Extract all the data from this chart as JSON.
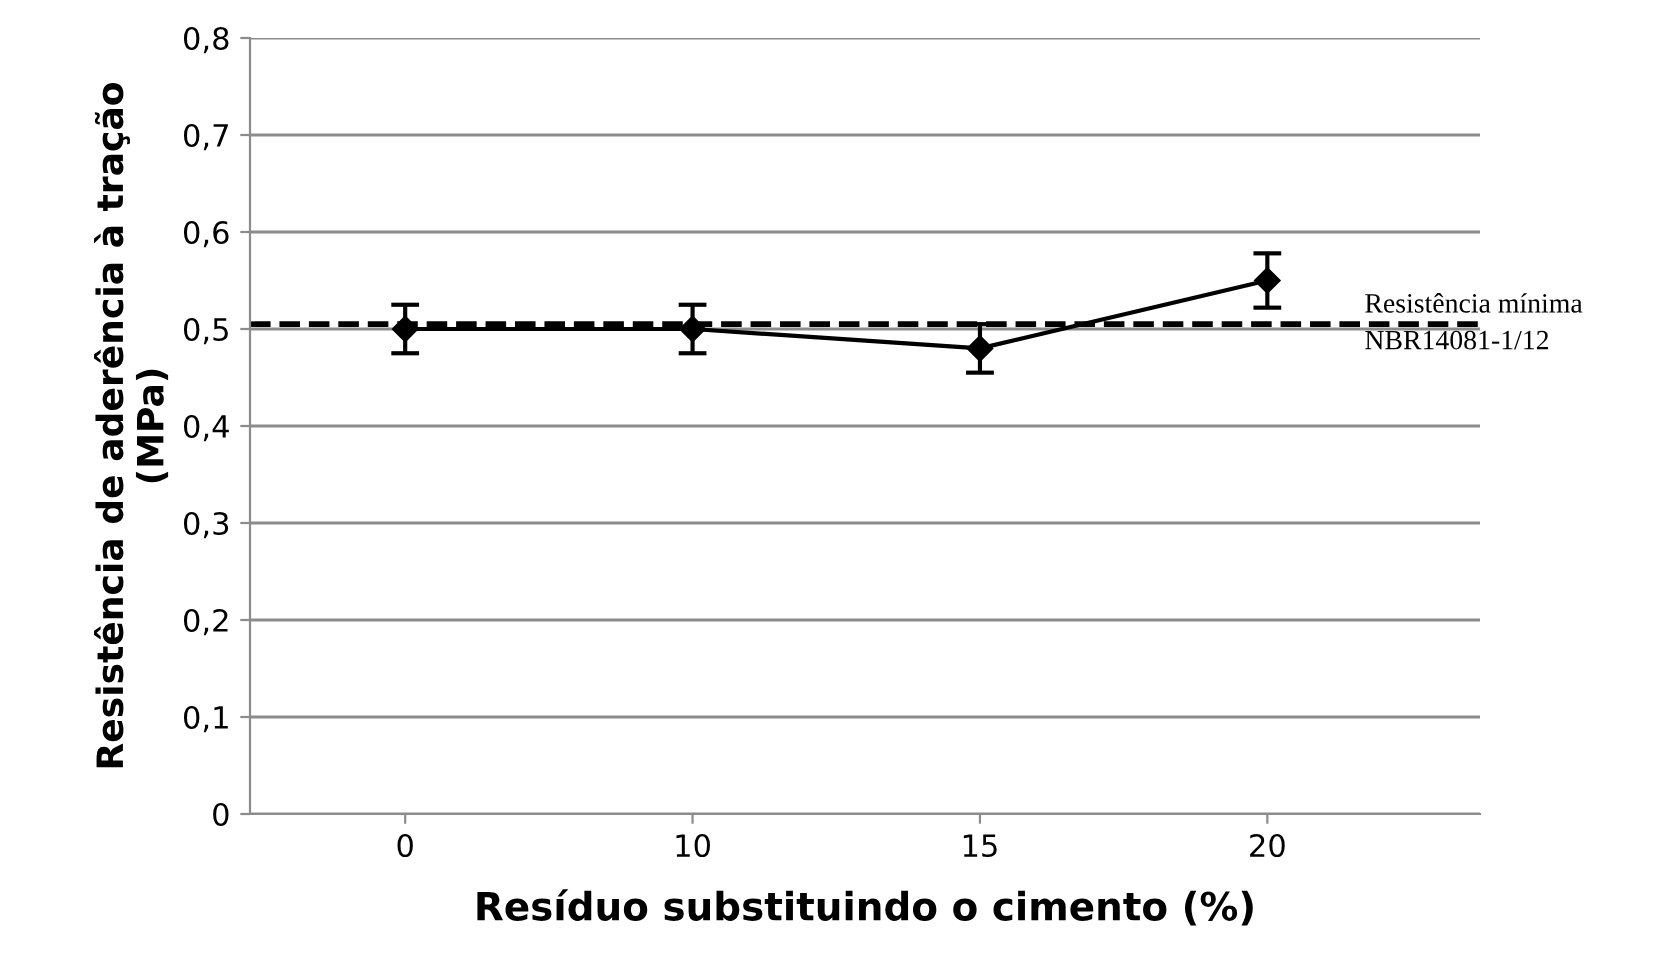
{
  "chart_data": {
    "type": "line",
    "xlabel": "Resíduo substituindo o cimento (%)",
    "ylabel": "Resistência de aderência à tração\n(MPa)",
    "categories": [
      "0",
      "10",
      "15",
      "20"
    ],
    "series": [
      {
        "color": "#000000",
        "values": [
          0.5,
          0.5,
          0.48,
          0.55
        ],
        "errors": [
          0.025,
          0.025,
          0.025,
          0.028
        ]
      }
    ],
    "ylim": [
      0,
      0.8
    ],
    "yticks": [
      {
        "value": 0,
        "label": "0"
      },
      {
        "value": 0.1,
        "label": "0,1"
      },
      {
        "value": 0.2,
        "label": "0,2"
      },
      {
        "value": 0.3,
        "label": "0,3"
      },
      {
        "value": 0.4,
        "label": "0,4"
      },
      {
        "value": 0.5,
        "label": "0,5"
      },
      {
        "value": 0.6,
        "label": "0,6"
      },
      {
        "value": 0.7,
        "label": "0,7"
      },
      {
        "value": 0.8,
        "label": "0,8"
      }
    ],
    "grid": "y",
    "marker": "diamond",
    "line_style": "solid",
    "ref_lines": [
      {
        "axis": "y",
        "value": 0.505,
        "label": "Resistência mínima\nNBR14081-1/12",
        "color": "#000000",
        "line_style": "dashed"
      }
    ]
  }
}
